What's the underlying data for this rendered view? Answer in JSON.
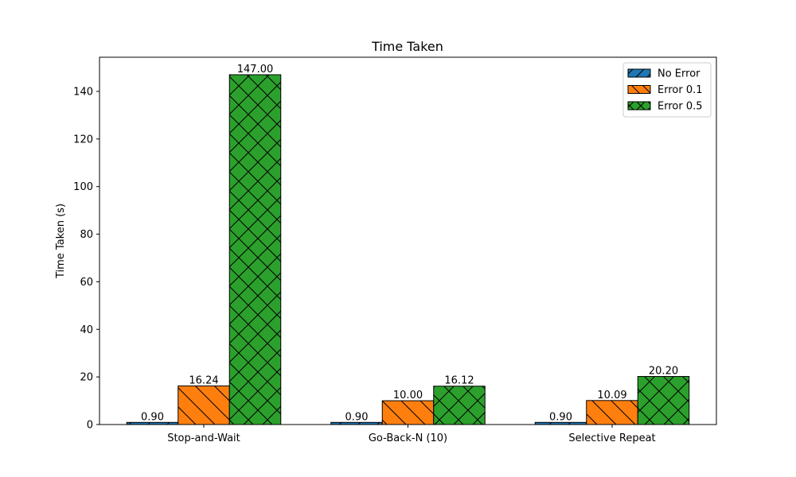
{
  "chart_data": {
    "type": "bar",
    "title": "Time Taken",
    "xlabel": "",
    "ylabel": "Time Taken (s)",
    "categories": [
      "Stop-and-Wait",
      "Go-Back-N (10)",
      "Selective Repeat"
    ],
    "series": [
      {
        "name": "No Error",
        "values": [
          0.9,
          0.9,
          0.9
        ],
        "color": "#1f77b4",
        "hatch": "forward-slash"
      },
      {
        "name": "Error 0.1",
        "values": [
          16.24,
          10.0,
          10.09
        ],
        "color": "#ff7f0e",
        "hatch": "back-slash"
      },
      {
        "name": "Error 0.5",
        "values": [
          147.0,
          16.12,
          20.2
        ],
        "color": "#2ca02c",
        "hatch": "cross"
      }
    ],
    "value_labels": [
      [
        "0.90",
        "0.90",
        "0.90"
      ],
      [
        "16.24",
        "10.00",
        "10.09"
      ],
      [
        "147.00",
        "16.12",
        "20.20"
      ]
    ],
    "ylim": [
      0,
      154.35
    ],
    "yticks": [
      0,
      20,
      40,
      60,
      80,
      100,
      120,
      140
    ],
    "grid": false,
    "legend_position": "top-right"
  }
}
